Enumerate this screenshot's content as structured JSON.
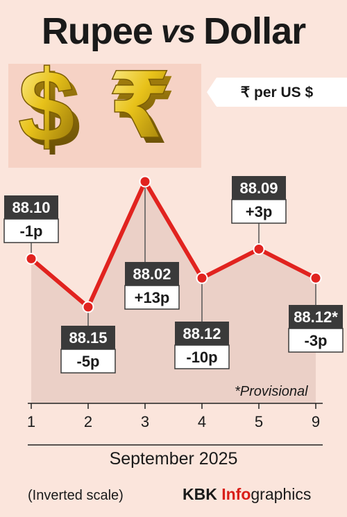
{
  "header": {
    "title_left": "Rupee",
    "title_mid": "vs",
    "title_right": "Dollar",
    "unit": "₹ per US $"
  },
  "icons": {
    "dollar": "dollar-sign-icon",
    "rupee": "rupee-sign-icon"
  },
  "colors": {
    "line": "#e1231f",
    "marker": "#e1231f",
    "callout_dark": "#3a3a3a",
    "brand_accent": "#d91e18"
  },
  "chart_data": {
    "type": "line",
    "title": "Rupee vs Dollar",
    "unit": "₹ per US $",
    "xlabel": "September 2025",
    "categories": [
      "1",
      "2",
      "3",
      "4",
      "5",
      "9"
    ],
    "values": [
      88.1,
      88.15,
      88.02,
      88.12,
      88.09,
      88.12
    ],
    "value_labels": [
      "88.10",
      "88.15",
      "88.02",
      "88.12",
      "88.09",
      "88.12*"
    ],
    "change_labels": [
      "-1p",
      "-5p",
      "+13p",
      "-10p",
      "+3p",
      "-3p"
    ],
    "inverted_y": true,
    "grid": false,
    "footnote": "*Provisional",
    "scale_note": "(Inverted scale)"
  },
  "footer": {
    "brand_kbk": "KBK ",
    "brand_info": "Info",
    "brand_graphics": "graphics"
  }
}
